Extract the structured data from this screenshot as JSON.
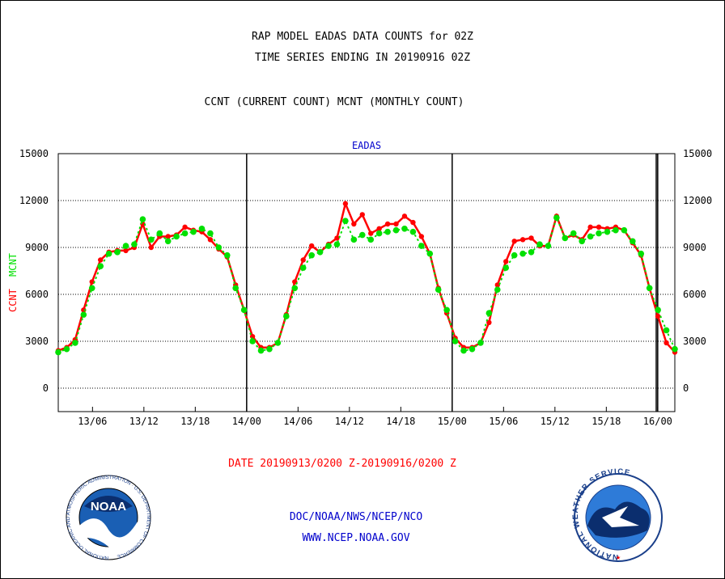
{
  "titles": {
    "line1": "RAP MODEL EADAS DATA COUNTS for 02Z",
    "line2": "TIME SERIES ENDING IN 20190916 02Z",
    "line3": "CCNT (CURRENT COUNT) MCNT (MONTHLY COUNT)"
  },
  "date_range": "DATE 20190913/0200 Z-20190916/0200 Z",
  "footer": {
    "org": "DOC/NOAA/NWS/NCEP/NCO",
    "url": "WWW.NCEP.NOAA.GOV"
  },
  "logos": {
    "left": "NOAA",
    "left_ring": "NATIONAL OCEANIC AND ATMOSPHERIC ADMINISTRATION · U.S. DEPARTMENT OF COMMERCE",
    "right_ring": "NATIONAL WEATHER SERVICE"
  },
  "colors": {
    "ccnt": "#ff0000",
    "mcnt": "#00e000",
    "axis": "#000000",
    "panel_title": "#0000cc",
    "footer": "#0000cc"
  },
  "chart_data": {
    "type": "line",
    "title": "EADAS",
    "ylabel_series": [
      "CCNT",
      "MCNT"
    ],
    "ylim": [
      -1500,
      15000
    ],
    "yticks": [
      0,
      3000,
      6000,
      9000,
      12000,
      15000
    ],
    "ytick_labels": [
      "0",
      "3000",
      "6000",
      "9000",
      "12000",
      "15000"
    ],
    "xlim": [
      2,
      74
    ],
    "x_unit": "hours since 13/00",
    "xticks": [
      6,
      12,
      18,
      24,
      30,
      36,
      42,
      48,
      54,
      60,
      66,
      72
    ],
    "xtick_labels": [
      "13/06",
      "13/12",
      "13/18",
      "14/00",
      "14/06",
      "14/12",
      "14/18",
      "15/00",
      "15/06",
      "15/12",
      "15/18",
      "16/00"
    ],
    "day_boundaries": [
      24,
      48,
      72
    ],
    "grid": "horizontal dotted",
    "legend": "left",
    "series": [
      {
        "name": "CCNT",
        "color": "#ff0000",
        "values": [
          2400,
          2600,
          3100,
          5000,
          6800,
          8200,
          8700,
          8800,
          8800,
          9000,
          10500,
          9000,
          9700,
          9700,
          9800,
          10300,
          10100,
          10000,
          9500,
          8900,
          8400,
          6600,
          5000,
          3300,
          2600,
          2600,
          2900,
          4700,
          6800,
          8200,
          9100,
          8700,
          9200,
          9600,
          11800,
          10500,
          11100,
          9900,
          10200,
          10500,
          10500,
          11000,
          10600,
          9700,
          8600,
          6400,
          4800,
          3200,
          2600,
          2600,
          2900,
          4200,
          6600,
          8100,
          9400,
          9500,
          9600,
          9100,
          9100,
          11000,
          9600,
          9800,
          9500,
          10300,
          10300,
          10200,
          10300,
          10100,
          9300,
          8500,
          6400,
          4600,
          2900,
          2300
        ]
      },
      {
        "name": "MCNT",
        "color": "#00e000",
        "values": [
          2300,
          2500,
          2900,
          4700,
          6400,
          7800,
          8600,
          8700,
          9100,
          9200,
          10800,
          9500,
          9900,
          9400,
          9700,
          9900,
          10000,
          10200,
          9900,
          9000,
          8500,
          6400,
          5000,
          3000,
          2400,
          2500,
          2900,
          4600,
          6400,
          7700,
          8500,
          8700,
          9100,
          9200,
          10700,
          9500,
          9800,
          9500,
          9900,
          10000,
          10100,
          10200,
          10000,
          9100,
          8600,
          6300,
          5000,
          3000,
          2400,
          2500,
          2900,
          4800,
          6300,
          7700,
          8500,
          8600,
          8700,
          9200,
          9100,
          10900,
          9600,
          9900,
          9400,
          9700,
          9900,
          10000,
          10100,
          10100,
          9400,
          8600,
          6400,
          5000,
          3700,
          2500
        ]
      }
    ]
  }
}
